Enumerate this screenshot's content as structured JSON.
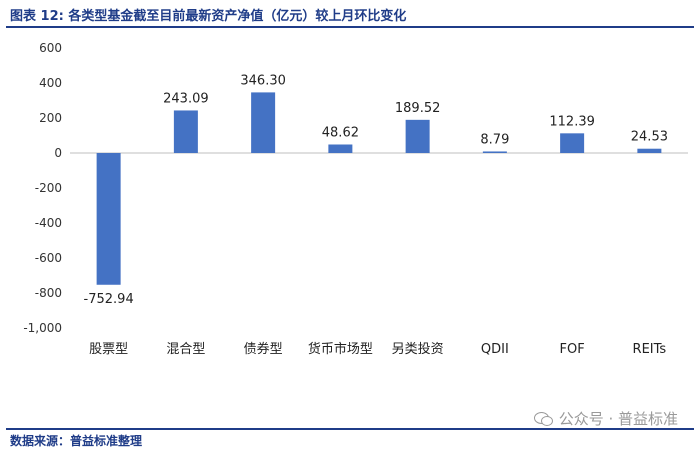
{
  "header": {
    "title": "图表 12:  各类型基金截至目前最新资产净值（亿元）较上月环比变化"
  },
  "footer": {
    "source": "数据来源：普益标准整理"
  },
  "watermark": {
    "text": "公众号 · 普益标准",
    "icon": "wechat-icon"
  },
  "colors": {
    "bar": "#4472c4",
    "title": "#1f3c88",
    "axis": "#bfbfbf"
  },
  "chart_data": {
    "type": "bar",
    "title": "",
    "xlabel": "",
    "ylabel": "",
    "ylim": [
      -1000,
      600
    ],
    "yticks": [
      600,
      400,
      200,
      0,
      -200,
      -400,
      -600,
      -800,
      -1000
    ],
    "ytick_labels": [
      "600",
      "400",
      "200",
      "0",
      "-200",
      "-400",
      "-600",
      "-800",
      "-1,000"
    ],
    "categories": [
      "股票型",
      "混合型",
      "债券型",
      "货币市场型",
      "另类投资",
      "QDII",
      "FOF",
      "REITs"
    ],
    "values": [
      -752.94,
      243.09,
      346.3,
      48.62,
      189.52,
      8.79,
      112.39,
      24.53
    ],
    "value_labels": [
      "-752.94",
      "243.09",
      "346.30",
      "48.62",
      "189.52",
      "8.79",
      "112.39",
      "24.53"
    ],
    "grid": false,
    "legend": "none"
  }
}
